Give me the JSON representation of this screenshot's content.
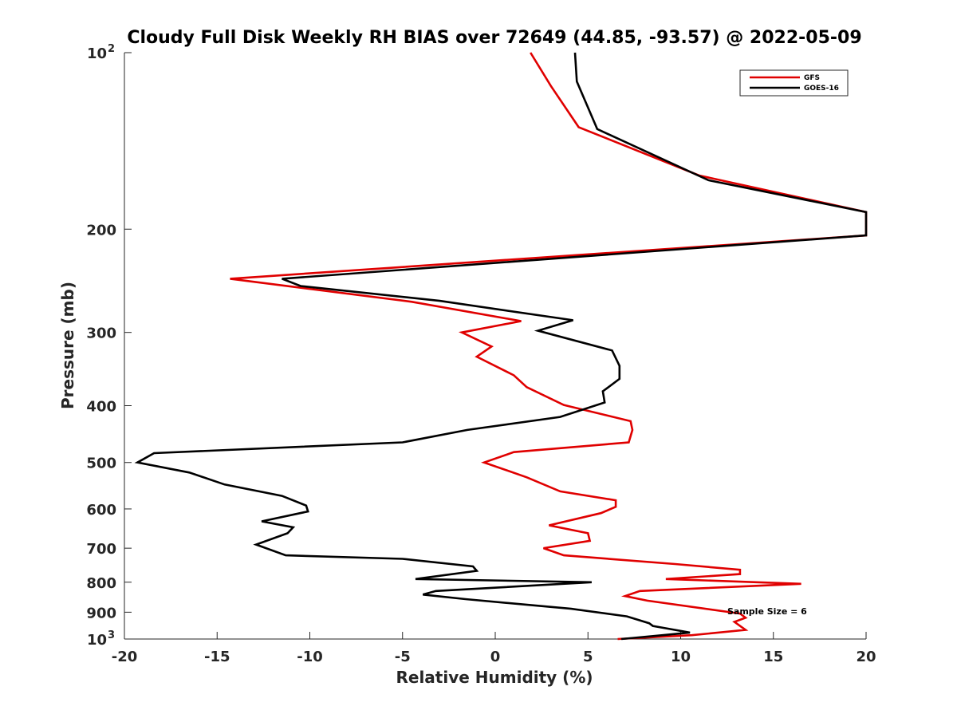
{
  "chart_data": {
    "type": "line",
    "title": "Cloudy Full Disk Weekly RH BIAS over 72649 (44.85, -93.57) @ 2022-05-09",
    "xlabel": "Relative Humidity (%)",
    "ylabel": "Pressure (mb)",
    "xlim": [
      -20,
      20
    ],
    "ylim": [
      100,
      1000
    ],
    "y_scale": "log",
    "y_reversed": true,
    "grid": false,
    "legend_position": "top-right",
    "x_ticks": [
      -20,
      -15,
      -10,
      -5,
      0,
      5,
      10,
      15,
      20
    ],
    "x_tick_labels": [
      "-20",
      "-15",
      "-10",
      "-5",
      "0",
      "5",
      "10",
      "15",
      "20"
    ],
    "y_tick_labels": [
      {
        "value": 100,
        "base": "10",
        "exp": "2"
      },
      {
        "value": 200,
        "base": "200",
        "exp": ""
      },
      {
        "value": 300,
        "base": "300",
        "exp": ""
      },
      {
        "value": 400,
        "base": "400",
        "exp": ""
      },
      {
        "value": 500,
        "base": "500",
        "exp": ""
      },
      {
        "value": 600,
        "base": "600",
        "exp": ""
      },
      {
        "value": 700,
        "base": "700",
        "exp": ""
      },
      {
        "value": 800,
        "base": "800",
        "exp": ""
      },
      {
        "value": 900,
        "base": "900",
        "exp": ""
      },
      {
        "value": 1000,
        "base": "10",
        "exp": "3"
      }
    ],
    "annotation": "Sample Size = 6",
    "series": [
      {
        "name": "GFS",
        "color": "#e00000",
        "points": [
          [
            1.9,
            100
          ],
          [
            3.0,
            114
          ],
          [
            4.5,
            134
          ],
          [
            11.0,
            162
          ],
          [
            20.0,
            187
          ],
          [
            20.0,
            205
          ],
          [
            -14.3,
            243
          ],
          [
            -4.5,
            266
          ],
          [
            1.4,
            287
          ],
          [
            -1.8,
            300
          ],
          [
            -0.2,
            317
          ],
          [
            -1.0,
            330
          ],
          [
            1.0,
            355
          ],
          [
            1.7,
            372
          ],
          [
            3.7,
            399
          ],
          [
            7.3,
            425
          ],
          [
            7.4,
            440
          ],
          [
            7.2,
            462
          ],
          [
            1.0,
            480
          ],
          [
            -0.6,
            500
          ],
          [
            1.7,
            530
          ],
          [
            3.5,
            560
          ],
          [
            6.5,
            580
          ],
          [
            6.5,
            595
          ],
          [
            5.7,
            610
          ],
          [
            2.9,
            640
          ],
          [
            5.0,
            660
          ],
          [
            5.1,
            680
          ],
          [
            2.6,
            700
          ],
          [
            3.7,
            720
          ],
          [
            9.7,
            745
          ],
          [
            13.2,
            762
          ],
          [
            13.2,
            775
          ],
          [
            9.2,
            790
          ],
          [
            16.5,
            805
          ],
          [
            7.8,
            828
          ],
          [
            7.0,
            845
          ],
          [
            8.2,
            860
          ],
          [
            13.2,
            905
          ],
          [
            13.5,
            920
          ],
          [
            12.9,
            935
          ],
          [
            13.5,
            965
          ],
          [
            10.6,
            985
          ],
          [
            6.6,
            1000
          ]
        ]
      },
      {
        "name": "GOES-16",
        "color": "#000000",
        "points": [
          [
            4.3,
            100
          ],
          [
            4.4,
            112
          ],
          [
            5.5,
            135
          ],
          [
            11.5,
            165
          ],
          [
            20.0,
            187
          ],
          [
            20.0,
            205
          ],
          [
            -11.5,
            243
          ],
          [
            -10.5,
            250
          ],
          [
            -3.0,
            265
          ],
          [
            4.2,
            286
          ],
          [
            2.3,
            298
          ],
          [
            6.3,
            322
          ],
          [
            6.7,
            342
          ],
          [
            6.7,
            360
          ],
          [
            5.8,
            378
          ],
          [
            5.9,
            395
          ],
          [
            3.5,
            418
          ],
          [
            -1.5,
            440
          ],
          [
            -5.0,
            462
          ],
          [
            -18.4,
            482
          ],
          [
            -19.3,
            500
          ],
          [
            -16.5,
            520
          ],
          [
            -14.6,
            545
          ],
          [
            -11.5,
            570
          ],
          [
            -10.2,
            592
          ],
          [
            -10.1,
            606
          ],
          [
            -12.6,
            630
          ],
          [
            -10.9,
            645
          ],
          [
            -11.2,
            660
          ],
          [
            -12.9,
            690
          ],
          [
            -11.3,
            720
          ],
          [
            -5.0,
            730
          ],
          [
            -1.2,
            752
          ],
          [
            -1.0,
            765
          ],
          [
            -4.3,
            790
          ],
          [
            5.2,
            800
          ],
          [
            -3.2,
            828
          ],
          [
            -3.9,
            840
          ],
          [
            -1.6,
            855
          ],
          [
            4.1,
            888
          ],
          [
            7.1,
            915
          ],
          [
            8.3,
            940
          ],
          [
            8.5,
            950
          ],
          [
            10.5,
            975
          ],
          [
            6.8,
            1000
          ]
        ]
      }
    ]
  }
}
